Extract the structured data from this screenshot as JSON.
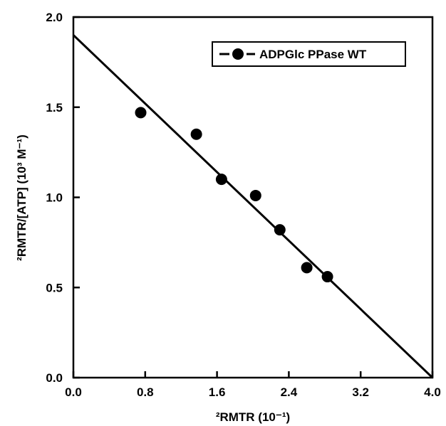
{
  "chart_data": {
    "type": "scatter",
    "xlabel": "²RMTR (10⁻¹)",
    "ylabel": "²RMTR/[ATP] (10³ M⁻¹)",
    "xlim": [
      0.0,
      4.0
    ],
    "ylim": [
      0.0,
      2.0
    ],
    "x_ticks": [
      "0.0",
      "0.8",
      "1.6",
      "2.4",
      "3.2",
      "4.0"
    ],
    "y_ticks": [
      "0.0",
      "0.5",
      "1.0",
      "1.5",
      "2.0"
    ],
    "grid": false,
    "legend": {
      "position": "top-right",
      "entries": [
        "ADPGlc PPase WT"
      ]
    },
    "series": [
      {
        "name": "ADPGlc PPase WT",
        "marker": "filled-circle",
        "color": "#000000",
        "x": [
          0.75,
          1.37,
          1.65,
          2.03,
          2.3,
          2.6,
          2.83
        ],
        "y": [
          1.47,
          1.35,
          1.1,
          1.01,
          0.82,
          0.61,
          0.56
        ]
      }
    ],
    "fit_line": {
      "x": [
        0.0,
        4.0
      ],
      "y": [
        1.9,
        0.0
      ],
      "style": "solid",
      "color": "#000000"
    }
  }
}
